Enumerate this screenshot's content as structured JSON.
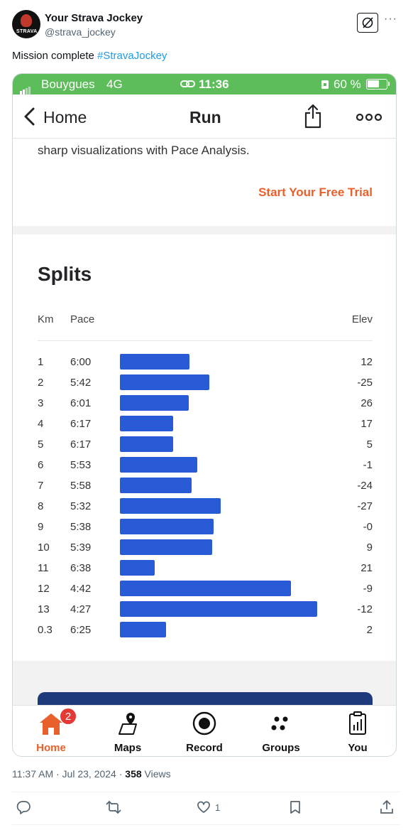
{
  "tweet": {
    "author_name": "Your Strava Jockey",
    "author_handle": "@strava_jockey",
    "avatar_text": "STRAVA",
    "text": "Mission complete ",
    "hashtag": "#StravaJockey",
    "timestamp": "11:37 AM · Jul 23, 2024 · ",
    "views_count": "358",
    "views_label": " Views",
    "likes": "1",
    "colors": {
      "link": "#1d9bf0",
      "muted": "#536471"
    }
  },
  "phone": {
    "status": {
      "carrier": "Bouygues",
      "network": "4G",
      "time": "11:36",
      "battery": "60 %",
      "battery_level": 0.6
    },
    "nav": {
      "back_label": "Home",
      "title": "Run"
    },
    "upsell": {
      "text": "sharp visualizations with Pace Analysis.",
      "cta": "Start Your Free Trial"
    },
    "splits": {
      "title": "Splits",
      "headers": {
        "km": "Km",
        "pace": "Pace",
        "elev": "Elev"
      },
      "rows": [
        {
          "km": "1",
          "pace": "6:00",
          "elev": "12",
          "speed": 10.0
        },
        {
          "km": "2",
          "pace": "5:42",
          "elev": "-25",
          "speed": 10.53
        },
        {
          "km": "3",
          "pace": "6:01",
          "elev": "26",
          "speed": 9.97
        },
        {
          "km": "4",
          "pace": "6:17",
          "elev": "17",
          "speed": 9.55
        },
        {
          "km": "5",
          "pace": "6:17",
          "elev": "5",
          "speed": 9.55
        },
        {
          "km": "6",
          "pace": "5:53",
          "elev": "-1",
          "speed": 10.2
        },
        {
          "km": "7",
          "pace": "5:58",
          "elev": "-24",
          "speed": 10.06
        },
        {
          "km": "8",
          "pace": "5:32",
          "elev": "-27",
          "speed": 10.84
        },
        {
          "km": "9",
          "pace": "5:38",
          "elev": "-0",
          "speed": 10.65
        },
        {
          "km": "10",
          "pace": "5:39",
          "elev": "9",
          "speed": 10.62
        },
        {
          "km": "11",
          "pace": "6:38",
          "elev": "21",
          "speed": 9.05
        },
        {
          "km": "12",
          "pace": "4:42",
          "elev": "-9",
          "speed": 12.77
        },
        {
          "km": "13",
          "pace": "4:27",
          "elev": "-12",
          "speed": 13.48
        },
        {
          "km": "0.3",
          "pace": "6:25",
          "elev": "2",
          "speed": 9.35
        }
      ],
      "bar_color": "#2a5bd7"
    },
    "tabs": [
      {
        "label": "Home",
        "icon": "home-icon",
        "badge": "2",
        "active": true
      },
      {
        "label": "Maps",
        "icon": "maps-icon"
      },
      {
        "label": "Record",
        "icon": "record-icon"
      },
      {
        "label": "Groups",
        "icon": "groups-icon"
      },
      {
        "label": "You",
        "icon": "you-icon"
      }
    ],
    "colors": {
      "status_bar": "#5cbd5a",
      "accent": "#e8612c",
      "badge": "#e53935"
    }
  }
}
